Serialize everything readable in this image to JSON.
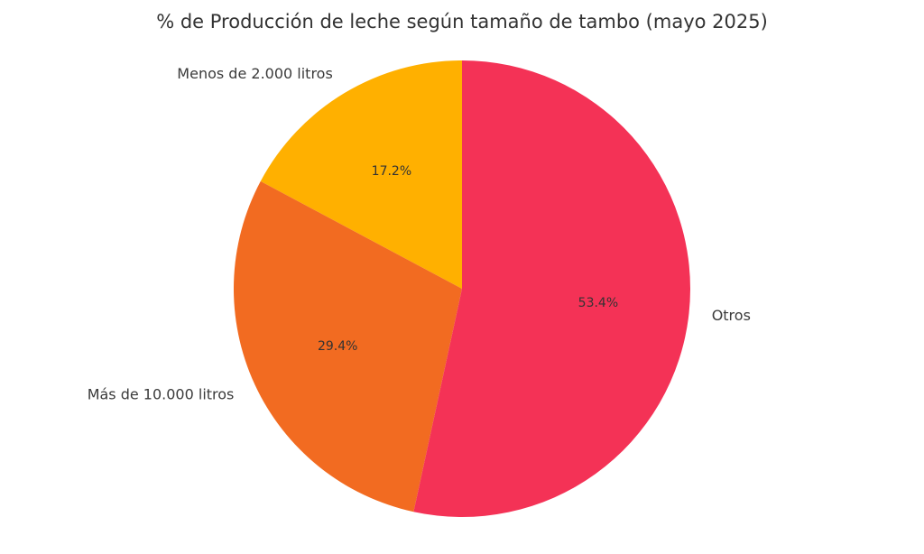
{
  "chart_data": {
    "type": "pie",
    "title": "% de Producción de leche según tamaño de tambo (mayo 2025)",
    "start_angle_deg": 90,
    "direction": "counterclockwise",
    "slices": [
      {
        "label": "Menos de 2.000 litros",
        "value": 17.2,
        "pct_label": "17.2%",
        "color": "#FFB000"
      },
      {
        "label": "Más de 10.000 litros",
        "value": 29.4,
        "pct_label": "29.4%",
        "color": "#F26B21"
      },
      {
        "label": "Otros",
        "value": 53.4,
        "pct_label": "53.4%",
        "color": "#F43256"
      }
    ]
  }
}
